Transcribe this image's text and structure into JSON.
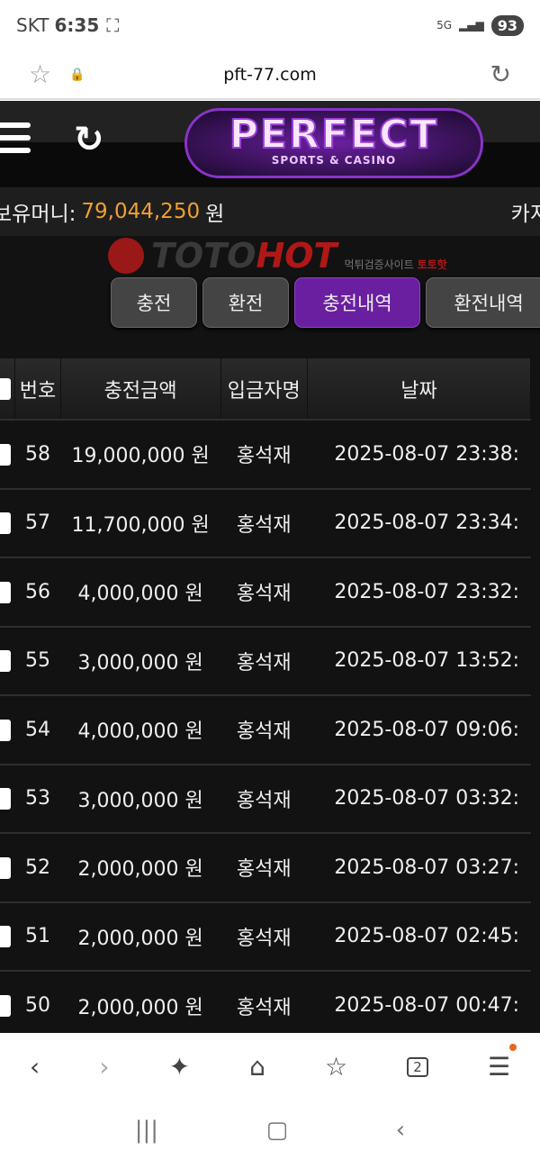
{
  "status_bar": {
    "carrier": "SKT",
    "time": "6:35",
    "network": "5G",
    "battery": "93"
  },
  "browser": {
    "url": "pft-77.com"
  },
  "site": {
    "logo_text": "PERFECT",
    "logo_sub": "SPORTS & CASINO",
    "money_label": "보유머니:",
    "money_amount": "79,044,250",
    "money_unit": "원",
    "casino_label": "카지",
    "tabs": [
      {
        "label": "충전"
      },
      {
        "label": "환전"
      },
      {
        "label": "충전내역",
        "active": true
      },
      {
        "label": "환전내역"
      }
    ],
    "accent": "#6a1fa0",
    "amount_color": "#f0a030",
    "table": {
      "headers": [
        "번호",
        "충전금액",
        "입금자명",
        "날짜"
      ],
      "rows": [
        {
          "no": "58",
          "amount": "19,000,000 원",
          "name": "홍석재",
          "date": "2025-08-07 23:38:"
        },
        {
          "no": "57",
          "amount": "11,700,000 원",
          "name": "홍석재",
          "date": "2025-08-07 23:34:"
        },
        {
          "no": "56",
          "amount": "4,000,000 원",
          "name": "홍석재",
          "date": "2025-08-07 23:32:"
        },
        {
          "no": "55",
          "amount": "3,000,000 원",
          "name": "홍석재",
          "date": "2025-08-07 13:52:"
        },
        {
          "no": "54",
          "amount": "4,000,000 원",
          "name": "홍석재",
          "date": "2025-08-07 09:06:"
        },
        {
          "no": "53",
          "amount": "3,000,000 원",
          "name": "홍석재",
          "date": "2025-08-07 03:32:"
        },
        {
          "no": "52",
          "amount": "2,000,000 원",
          "name": "홍석재",
          "date": "2025-08-07 03:27:"
        },
        {
          "no": "51",
          "amount": "2,000,000 원",
          "name": "홍석재",
          "date": "2025-08-07 02:45:"
        },
        {
          "no": "50",
          "amount": "2,000,000 원",
          "name": "홍석재",
          "date": "2025-08-07 00:47:"
        }
      ]
    }
  },
  "watermark": {
    "toto": "TOTO",
    "hot": "HOT",
    "sub": "먹튀검증사이트",
    "sub_brand": "토토핫"
  },
  "bottom_nav": {
    "tab_count": "2"
  }
}
